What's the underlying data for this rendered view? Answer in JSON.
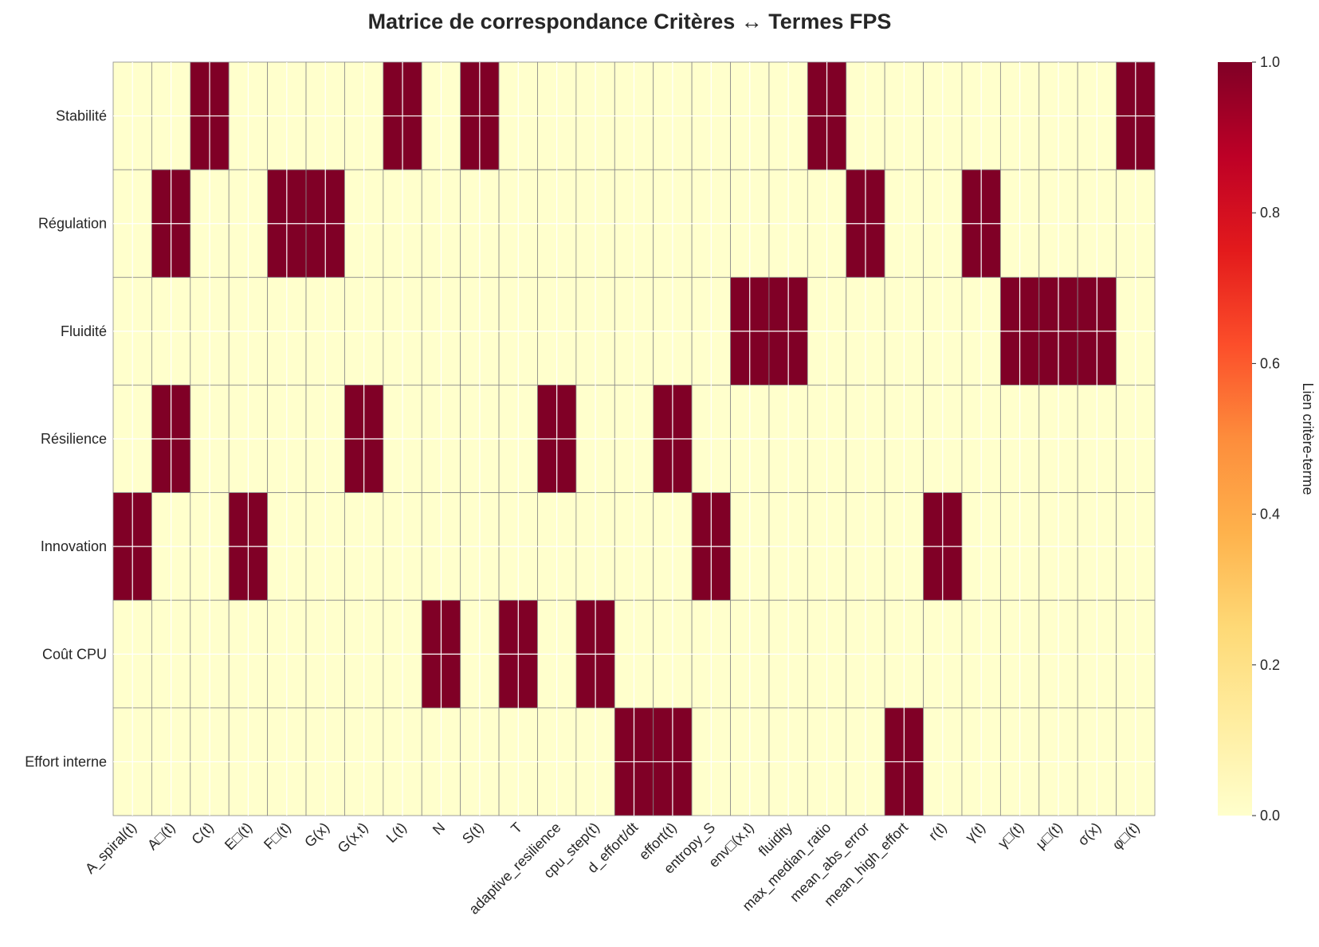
{
  "chart_data": {
    "type": "heatmap",
    "title": "Matrice de correspondance Critères ↔ Termes FPS",
    "rows": [
      "Stabilité",
      "Régulation",
      "Fluidité",
      "Résilience",
      "Innovation",
      "Coût CPU",
      "Effort interne"
    ],
    "columns": [
      "A_spiral(t)",
      "A□(t)",
      "C(t)",
      "E□(t)",
      "F□(t)",
      "G(x)",
      "G(x,t)",
      "L(t)",
      "N",
      "S(t)",
      "T",
      "adaptive_resilience",
      "cpu_step(t)",
      "d_effort/dt",
      "effort(t)",
      "entropy_S",
      "env□(x,t)",
      "fluidity",
      "max_median_ratio",
      "mean_abs_error",
      "mean_high_effort",
      "r(t)",
      "γ(t)",
      "γ□(t)",
      "μ□(t)",
      "σ(x)",
      "φ□(t)"
    ],
    "values": [
      [
        0,
        0,
        1,
        0,
        0,
        0,
        0,
        1,
        0,
        1,
        0,
        0,
        0,
        0,
        0,
        0,
        0,
        0,
        1,
        0,
        0,
        0,
        0,
        0,
        0,
        0,
        1
      ],
      [
        0,
        1,
        0,
        0,
        1,
        1,
        0,
        0,
        0,
        0,
        0,
        0,
        0,
        0,
        0,
        0,
        0,
        0,
        0,
        1,
        0,
        0,
        1,
        0,
        0,
        0,
        0
      ],
      [
        0,
        0,
        0,
        0,
        0,
        0,
        0,
        0,
        0,
        0,
        0,
        0,
        0,
        0,
        0,
        0,
        1,
        1,
        0,
        0,
        0,
        0,
        0,
        1,
        1,
        1,
        0
      ],
      [
        0,
        1,
        0,
        0,
        0,
        0,
        1,
        0,
        0,
        0,
        0,
        1,
        0,
        0,
        1,
        0,
        0,
        0,
        0,
        0,
        0,
        0,
        0,
        0,
        0,
        0,
        0
      ],
      [
        1,
        0,
        0,
        1,
        0,
        0,
        0,
        0,
        0,
        0,
        0,
        0,
        0,
        0,
        0,
        1,
        0,
        0,
        0,
        0,
        0,
        1,
        0,
        0,
        0,
        0,
        0
      ],
      [
        0,
        0,
        0,
        0,
        0,
        0,
        0,
        0,
        1,
        0,
        1,
        0,
        1,
        0,
        0,
        0,
        0,
        0,
        0,
        0,
        0,
        0,
        0,
        0,
        0,
        0,
        0
      ],
      [
        0,
        0,
        0,
        0,
        0,
        0,
        0,
        0,
        0,
        0,
        0,
        0,
        0,
        1,
        1,
        0,
        0,
        0,
        0,
        0,
        1,
        0,
        0,
        0,
        0,
        0,
        0
      ]
    ],
    "colorscale": "YlOrRd",
    "vmin": 0,
    "vmax": 1,
    "colorbar": {
      "label": "Lien critère-terme",
      "ticks": [
        "0.0",
        "0.2",
        "0.4",
        "0.6",
        "0.8",
        "1.0"
      ]
    },
    "colors": {
      "low": "#ffffcc",
      "high": "#800026",
      "cell_border": "#888888",
      "grid": "#ffffff"
    }
  }
}
